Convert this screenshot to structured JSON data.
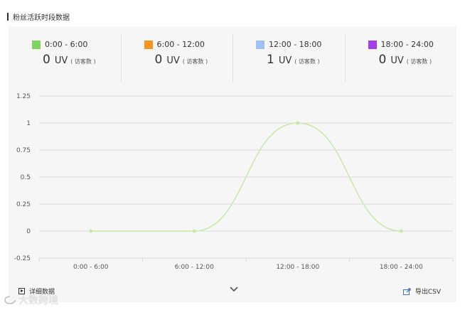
{
  "section_title": "粉丝活跃时段数据",
  "stats": [
    {
      "label": "0:00 - 6:00",
      "color": "#7ed65f",
      "value": "0",
      "unit": "UV",
      "sub": "( 访客数 )"
    },
    {
      "label": "6:00 - 12:00",
      "color": "#f7931e",
      "value": "0",
      "unit": "UV",
      "sub": "( 访客数 )"
    },
    {
      "label": "12:00 - 18:00",
      "color": "#9fc0f5",
      "value": "1",
      "unit": "UV",
      "sub": "( 访客数 )"
    },
    {
      "label": "18:00 - 24:00",
      "color": "#a23fe8",
      "value": "0",
      "unit": "UV",
      "sub": "( 访客数 )"
    }
  ],
  "chart_data": {
    "type": "line",
    "categories": [
      "0:00 - 6:00",
      "6:00 - 12:00",
      "12:00 - 18:00",
      "18:00 - 24:00"
    ],
    "values": [
      0,
      0,
      1,
      0
    ],
    "y_ticks": [
      "1.25",
      "1",
      "0.75",
      "0.5",
      "0.25",
      "0",
      "-0.25"
    ],
    "ylim": [
      -0.25,
      1.25
    ],
    "line_color": "#c9e8a9",
    "grid": true
  },
  "footer": {
    "detail_label": "详细数据",
    "export_label": "导出CSV"
  },
  "watermark": "大数跨境"
}
